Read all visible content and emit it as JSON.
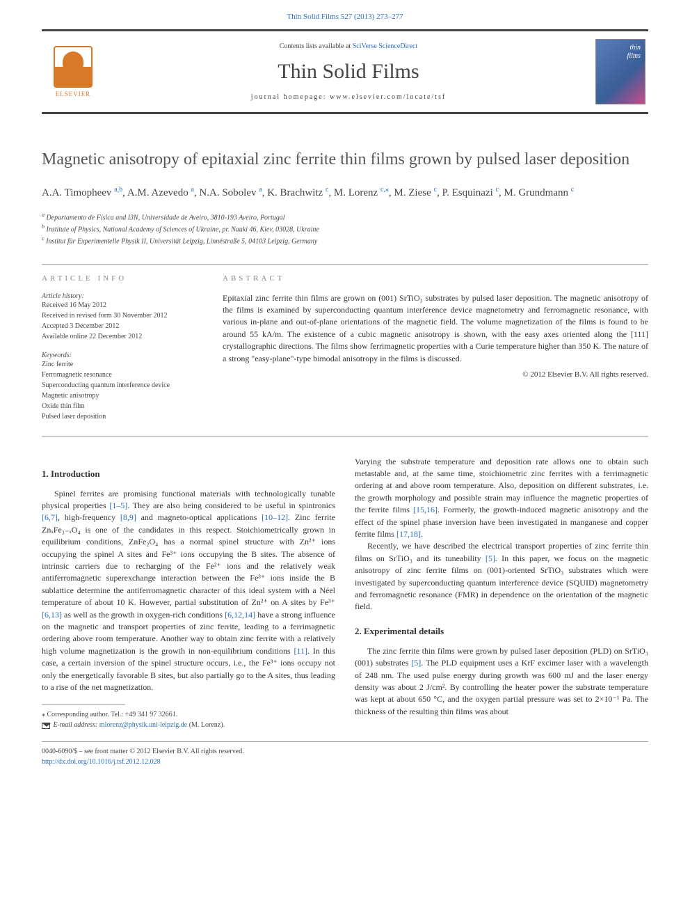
{
  "top_citation": "Thin Solid Films 527 (2013) 273–277",
  "header": {
    "contents_prefix": "Contents lists available at ",
    "contents_link": "SciVerse ScienceDirect",
    "journal": "Thin Solid Films",
    "homepage_label": "journal homepage: www.elsevier.com/locate/tsf",
    "publisher": "ELSEVIER"
  },
  "article": {
    "title": "Magnetic anisotropy of epitaxial zinc ferrite thin films grown by pulsed laser deposition",
    "authors_html": "A.A. Timopheev <sup>a,b</sup>, A.M. Azevedo <sup>a</sup>, N.A. Sobolev <sup>a</sup>, K. Brachwitz <sup>c</sup>, M. Lorenz <sup>c,*</sup>, M. Ziese <sup>c</sup>, P. Esquinazi <sup>c</sup>, M. Grundmann <sup>c</sup>",
    "affiliations": [
      {
        "key": "a",
        "text": "Departamento de Física and I3N, Universidade de Aveiro, 3810-193 Aveiro, Portugal"
      },
      {
        "key": "b",
        "text": "Institute of Physics, National Academy of Sciences of Ukraine, pr. Nauki 46, Kiev, 03028, Ukraine"
      },
      {
        "key": "c",
        "text": "Institut für Experimentelle Physik II, Universität Leipzig, Linnéstraße 5, 04103 Leipzig, Germany"
      }
    ],
    "info_hdr_left": "ARTICLE INFO",
    "info_hdr_right": "ABSTRACT",
    "history_label": "Article history:",
    "history": [
      "Received 16 May 2012",
      "Received in revised form 30 November 2012",
      "Accepted 3 December 2012",
      "Available online 22 December 2012"
    ],
    "keywords_label": "Keywords:",
    "keywords": [
      "Zinc ferrite",
      "Ferromagnetic resonance",
      "Superconducting quantum interference device",
      "Magnetic anisotropy",
      "Oxide thin film",
      "Pulsed laser deposition"
    ],
    "abstract": "Epitaxial zinc ferrite thin films are grown on (001) SrTiO₃ substrates by pulsed laser deposition. The magnetic anisotropy of the films is examined by superconducting quantum interference device magnetometry and ferromagnetic resonance, with various in-plane and out-of-plane orientations of the magnetic field. The volume magnetization of the films is found to be around 55 kA/m. The existence of a cubic magnetic anisotropy is shown, with the easy axes oriented along the [111] crystallographic directions. The films show ferrimagnetic properties with a Curie temperature higher than 350 K. The nature of a strong \"easy-plane\"-type bimodal anisotropy in the films is discussed.",
    "copyright": "© 2012 Elsevier B.V. All rights reserved."
  },
  "sections": {
    "intro_title": "1. Introduction",
    "intro_p1": "Spinel ferrites are promising functional materials with technologically tunable physical properties [1–5]. They are also being considered to be useful in spintronics [6,7], high-frequency [8,9] and magneto-optical applications [10–12]. Zinc ferrite ZnₓFe₃₋ₓO₄ is one of the candidates in this respect. Stoichiometrically grown in equilibrium conditions, ZnFe₂O₄ has a normal spinel structure with Zn²⁺ ions occupying the spinel A sites and Fe³⁺ ions occupying the B sites. The absence of intrinsic carriers due to recharging of the Fe²⁺ ions and the relatively weak antiferromagnetic superexchange interaction between the Fe³⁺ ions inside the B sublattice determine the antiferromagnetic character of this ideal system with a Néel temperature of about 10 K. However, partial substitution of Zn²⁺ on A sites by Fe³⁺ [6,13] as well as the growth in oxygen-rich conditions [6,12,14] have a strong influence on the magnetic and transport properties of zinc ferrite, leading to a ferrimagnetic ordering above room temperature. Another way to obtain zinc ferrite with a relatively high volume magnetization is the growth in non-equilibrium conditions [11]. In this case, a certain inversion of the spinel structure occurs, i.e., the Fe³⁺ ions occupy not only the energetically favorable B sites, but also partially go to the A sites, thus leading to a rise of the net magnetization.",
    "intro_p2": "Varying the substrate temperature and deposition rate allows one to obtain such metastable and, at the same time, stoichiometric zinc ferrites with a ferrimagnetic ordering at and above room temperature. Also, deposition on different substrates, i.e. the growth morphology and possible strain may influence the magnetic properties of the ferrite films [15,16]. Formerly, the growth-induced magnetic anisotropy and the effect of the spinel phase inversion have been investigated in manganese and copper ferrite films [17,18].",
    "intro_p3": "Recently, we have described the electrical transport properties of zinc ferrite thin films on SrTiO₃ and its tuneability [5]. In this paper, we focus on the magnetic anisotropy of zinc ferrite films on (001)-oriented SrTiO₃ substrates which were investigated by superconducting quantum interference device (SQUID) magnetometry and ferromagnetic resonance (FMR) in dependence on the orientation of the magnetic field.",
    "exp_title": "2. Experimental details",
    "exp_p1": "The zinc ferrite thin films were grown by pulsed laser deposition (PLD) on SrTiO₃ (001) substrates [5]. The PLD equipment uses a KrF excimer laser with a wavelength of 248 nm. The used pulse energy during growth was 600 mJ and the laser energy density was about 2 J/cm². By controlling the heater power the substrate temperature was kept at about 650 °C, and the oxygen partial pressure was set to 2×10⁻¹ Pa. The thickness of the resulting thin films was about"
  },
  "footnote": {
    "corr": "⁎ Corresponding author. Tel.: +49 341 97 32661.",
    "email_label": "E-mail address:",
    "email": "mlorenz@physik.uni-leipzig.de",
    "email_name": "(M. Lorenz)."
  },
  "footer": {
    "issn": "0040-6090/$ – see front matter © 2012 Elsevier B.V. All rights reserved.",
    "doi": "http://dx.doi.org/10.1016/j.tsf.2012.12.028"
  },
  "colors": {
    "link": "#2a6ebb",
    "text": "#333333",
    "rule": "#999999",
    "elsevier_orange": "#d97828"
  }
}
